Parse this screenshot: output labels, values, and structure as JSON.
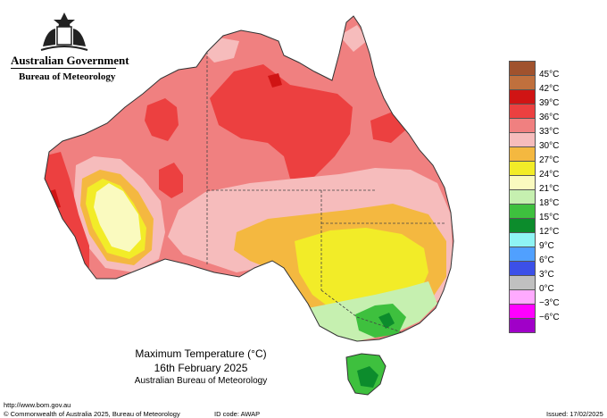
{
  "header": {
    "government": "Australian Government",
    "bureau": "Bureau of Meteorology"
  },
  "legend": {
    "items": [
      {
        "label": "45°C",
        "color": "#a0522d"
      },
      {
        "label": "42°C",
        "color": "#c0703d"
      },
      {
        "label": "39°C",
        "color": "#d01414"
      },
      {
        "label": "36°C",
        "color": "#ec4040"
      },
      {
        "label": "33°C",
        "color": "#f08080"
      },
      {
        "label": "30°C",
        "color": "#f6bcbc"
      },
      {
        "label": "27°C",
        "color": "#f4b840"
      },
      {
        "label": "24°C",
        "color": "#f2ec28"
      },
      {
        "label": "21°C",
        "color": "#fafabf"
      },
      {
        "label": "18°C",
        "color": "#c6f0b0"
      },
      {
        "label": "15°C",
        "color": "#3ec03e"
      },
      {
        "label": "12°C",
        "color": "#0c8c2c"
      },
      {
        "label": "9°C",
        "color": "#8ff4f4"
      },
      {
        "label": "6°C",
        "color": "#50a0ff"
      },
      {
        "label": "3°C",
        "color": "#3c50e8"
      },
      {
        "label": "0°C",
        "color": "#c0c0c0"
      },
      {
        "label": "−3°C",
        "color": "#ffaaff"
      },
      {
        "label": "−6°C",
        "color": "#ff00ff"
      },
      {
        "label": "",
        "color": "#a000c8"
      }
    ]
  },
  "caption": {
    "title": "Maximum Temperature (°C)",
    "date": "16th February 2025",
    "source": "Australian Bureau of Meteorology"
  },
  "footer": {
    "url": "http://www.bom.gov.au",
    "copyright": "© Commonwealth of Australia 2025, Bureau of Meteorology",
    "id_code": "ID code: AWAP",
    "issued": "Issued: 17/02/2025"
  }
}
